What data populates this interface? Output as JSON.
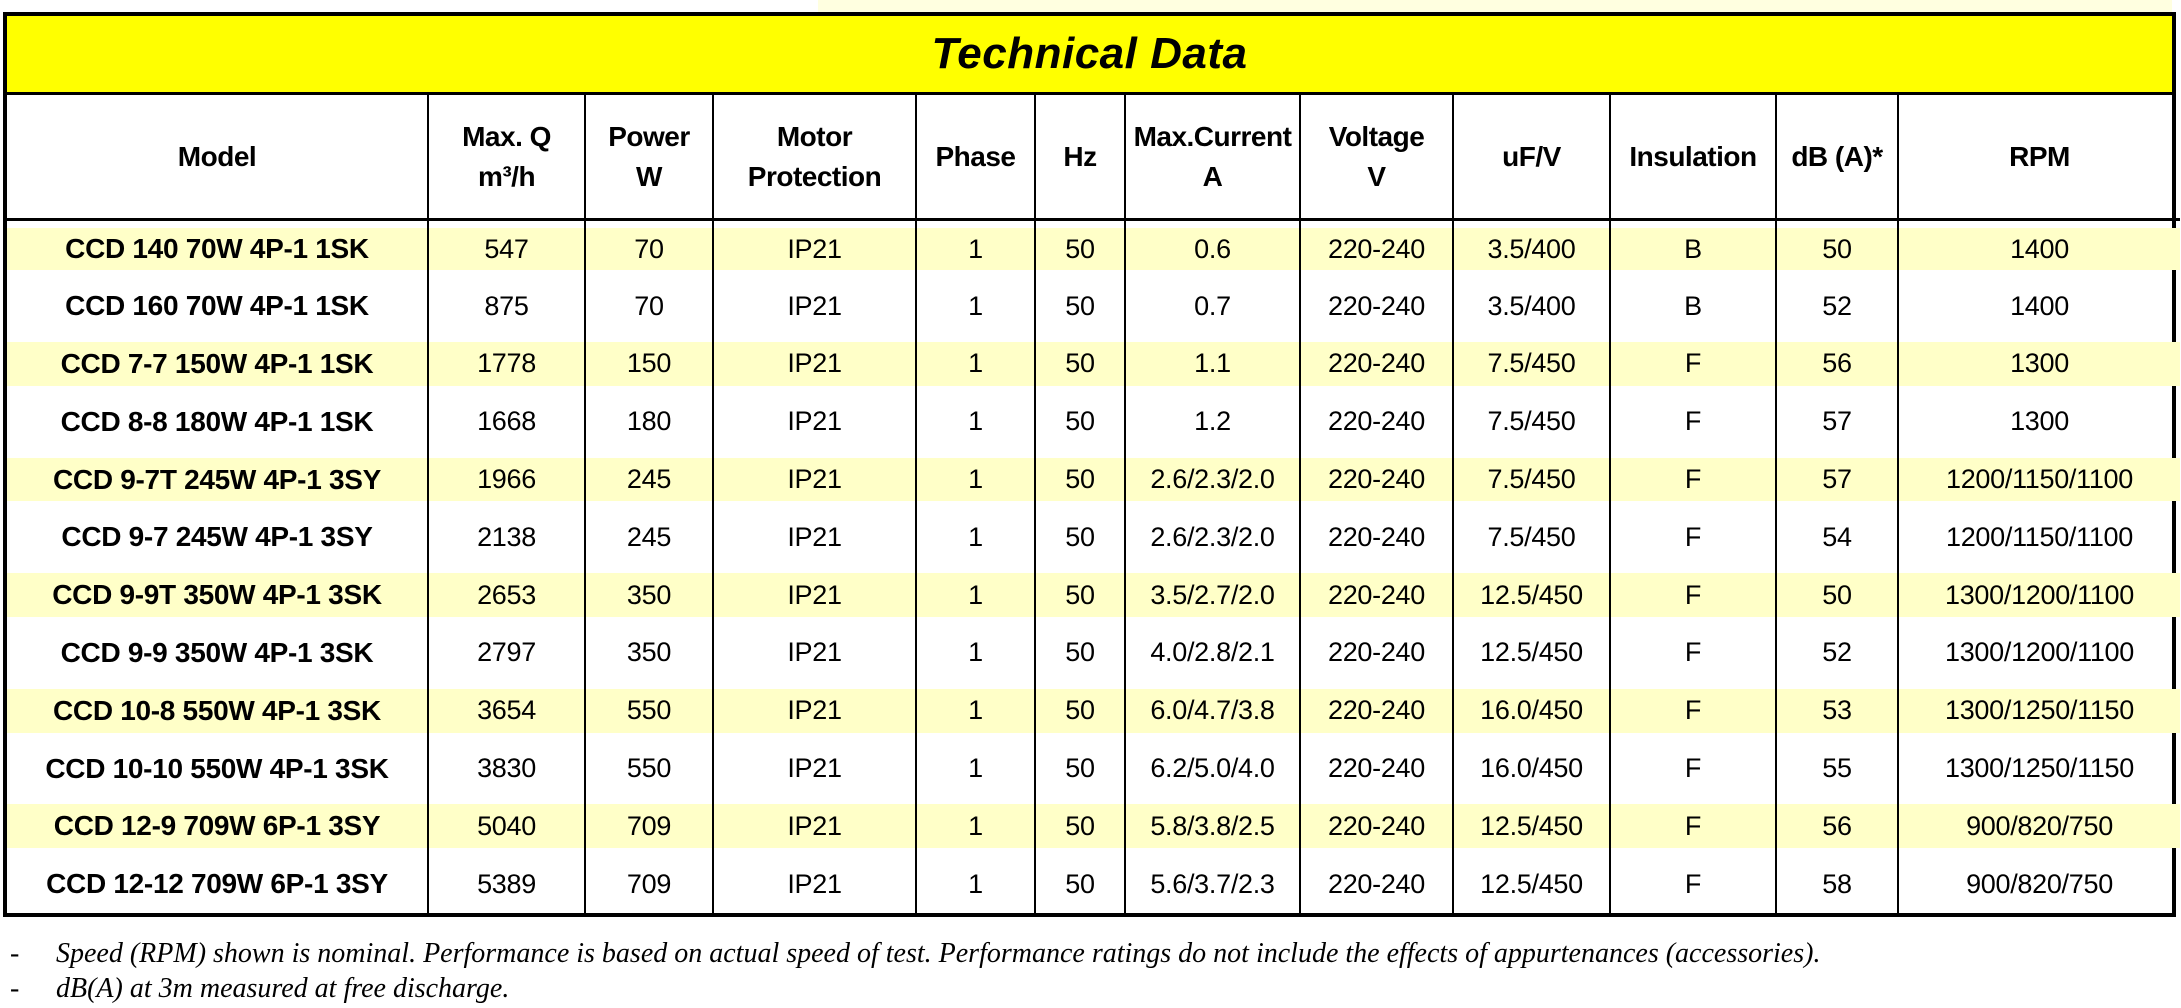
{
  "page": {
    "background_color": "#FFFFFF",
    "top_strip_color": "#FFFFE0"
  },
  "table": {
    "title": "Technical Data",
    "title_bg_color": "#FFFF00",
    "row_highlight_color": "#FFFFC8",
    "columns": [
      {
        "key": "model",
        "lines": [
          "Model"
        ]
      },
      {
        "key": "max_q",
        "lines": [
          "Max. Q",
          "m³/h"
        ]
      },
      {
        "key": "power",
        "lines": [
          "Power",
          "W"
        ]
      },
      {
        "key": "motor_protection",
        "lines": [
          "Motor",
          "Protection"
        ]
      },
      {
        "key": "phase",
        "lines": [
          "Phase"
        ]
      },
      {
        "key": "hz",
        "lines": [
          "Hz"
        ]
      },
      {
        "key": "max_current",
        "lines": [
          "Max.Current",
          "A"
        ]
      },
      {
        "key": "voltage",
        "lines": [
          "Voltage",
          "V"
        ]
      },
      {
        "key": "uf_v",
        "lines": [
          "uF/V"
        ]
      },
      {
        "key": "insulation",
        "lines": [
          "Insulation"
        ]
      },
      {
        "key": "db_a",
        "lines": [
          "dB (A)*"
        ]
      },
      {
        "key": "rpm",
        "lines": [
          "RPM"
        ]
      }
    ],
    "rows": [
      {
        "highlight": true,
        "model": "CCD 140 70W 4P-1 1SK",
        "max_q": "547",
        "power": "70",
        "motor_protection": "IP21",
        "phase": "1",
        "hz": "50",
        "max_current": "0.6",
        "voltage": "220-240",
        "uf_v": "3.5/400",
        "insulation": "B",
        "db_a": "50",
        "rpm": "1400"
      },
      {
        "highlight": false,
        "model": "CCD 160 70W 4P-1 1SK",
        "max_q": "875",
        "power": "70",
        "motor_protection": "IP21",
        "phase": "1",
        "hz": "50",
        "max_current": "0.7",
        "voltage": "220-240",
        "uf_v": "3.5/400",
        "insulation": "B",
        "db_a": "52",
        "rpm": "1400"
      },
      {
        "highlight": true,
        "model": "CCD 7-7 150W 4P-1 1SK",
        "max_q": "1778",
        "power": "150",
        "motor_protection": "IP21",
        "phase": "1",
        "hz": "50",
        "max_current": "1.1",
        "voltage": "220-240",
        "uf_v": "7.5/450",
        "insulation": "F",
        "db_a": "56",
        "rpm": "1300"
      },
      {
        "highlight": false,
        "model": "CCD 8-8 180W 4P-1 1SK",
        "max_q": "1668",
        "power": "180",
        "motor_protection": "IP21",
        "phase": "1",
        "hz": "50",
        "max_current": "1.2",
        "voltage": "220-240",
        "uf_v": "7.5/450",
        "insulation": "F",
        "db_a": "57",
        "rpm": "1300"
      },
      {
        "highlight": true,
        "model": "CCD 9-7T 245W 4P-1 3SY",
        "max_q": "1966",
        "power": "245",
        "motor_protection": "IP21",
        "phase": "1",
        "hz": "50",
        "max_current": "2.6/2.3/2.0",
        "voltage": "220-240",
        "uf_v": "7.5/450",
        "insulation": "F",
        "db_a": "57",
        "rpm": "1200/1150/1100"
      },
      {
        "highlight": false,
        "model": "CCD 9-7 245W 4P-1 3SY",
        "max_q": "2138",
        "power": "245",
        "motor_protection": "IP21",
        "phase": "1",
        "hz": "50",
        "max_current": "2.6/2.3/2.0",
        "voltage": "220-240",
        "uf_v": "7.5/450",
        "insulation": "F",
        "db_a": "54",
        "rpm": "1200/1150/1100"
      },
      {
        "highlight": true,
        "model": "CCD 9-9T 350W 4P-1 3SK",
        "max_q": "2653",
        "power": "350",
        "motor_protection": "IP21",
        "phase": "1",
        "hz": "50",
        "max_current": "3.5/2.7/2.0",
        "voltage": "220-240",
        "uf_v": "12.5/450",
        "insulation": "F",
        "db_a": "50",
        "rpm": "1300/1200/1100"
      },
      {
        "highlight": false,
        "model": "CCD 9-9 350W 4P-1 3SK",
        "max_q": "2797",
        "power": "350",
        "motor_protection": "IP21",
        "phase": "1",
        "hz": "50",
        "max_current": "4.0/2.8/2.1",
        "voltage": "220-240",
        "uf_v": "12.5/450",
        "insulation": "F",
        "db_a": "52",
        "rpm": "1300/1200/1100"
      },
      {
        "highlight": true,
        "model": "CCD 10-8 550W 4P-1 3SK",
        "max_q": "3654",
        "power": "550",
        "motor_protection": "IP21",
        "phase": "1",
        "hz": "50",
        "max_current": "6.0/4.7/3.8",
        "voltage": "220-240",
        "uf_v": "16.0/450",
        "insulation": "F",
        "db_a": "53",
        "rpm": "1300/1250/1150"
      },
      {
        "highlight": false,
        "model": "CCD 10-10 550W 4P-1 3SK",
        "max_q": "3830",
        "power": "550",
        "motor_protection": "IP21",
        "phase": "1",
        "hz": "50",
        "max_current": "6.2/5.0/4.0",
        "voltage": "220-240",
        "uf_v": "16.0/450",
        "insulation": "F",
        "db_a": "55",
        "rpm": "1300/1250/1150"
      },
      {
        "highlight": true,
        "model": "CCD 12-9 709W 6P-1 3SY",
        "max_q": "5040",
        "power": "709",
        "motor_protection": "IP21",
        "phase": "1",
        "hz": "50",
        "max_current": "5.8/3.8/2.5",
        "voltage": "220-240",
        "uf_v": "12.5/450",
        "insulation": "F",
        "db_a": "56",
        "rpm": "900/820/750"
      },
      {
        "highlight": false,
        "model": "CCD 12-12 709W 6P-1 3SY",
        "max_q": "5389",
        "power": "709",
        "motor_protection": "IP21",
        "phase": "1",
        "hz": "50",
        "max_current": "5.6/3.7/2.3",
        "voltage": "220-240",
        "uf_v": "12.5/450",
        "insulation": "F",
        "db_a": "58",
        "rpm": "900/820/750"
      }
    ]
  },
  "footnotes": [
    {
      "bullet": "-",
      "text": "Speed (RPM) shown is nominal. Performance is based on actual speed of test. Performance ratings do not include the effects of appurtenances (accessories)."
    },
    {
      "bullet": "-",
      "text": "dB(A) at 3m measured at free discharge."
    }
  ]
}
